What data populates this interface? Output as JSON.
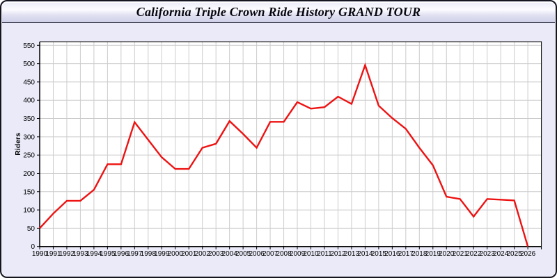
{
  "window": {
    "title": "California Triple Crown Ride History GRAND TOUR"
  },
  "colors": {
    "line": "#ed1212",
    "plot_bg": "#ffffff",
    "grid": "#cccccc",
    "axis": "#000000",
    "panel_bg": "#eaeaf8",
    "title_text": "#06060f"
  },
  "chart_data": {
    "type": "line",
    "title": "California Triple Crown Ride History GRAND TOUR",
    "xlabel": "",
    "ylabel": "Riders",
    "ylim": [
      0,
      550
    ],
    "ytick_step": 50,
    "xlim": [
      1990,
      2027
    ],
    "grid": true,
    "legend": "none",
    "x": [
      1990,
      1991,
      1992,
      1993,
      1994,
      1995,
      1996,
      1997,
      1998,
      1999,
      2000,
      2001,
      2002,
      2003,
      2004,
      2005,
      2006,
      2007,
      2008,
      2009,
      2010,
      2011,
      2012,
      2013,
      2014,
      2015,
      2016,
      2017,
      2018,
      2019,
      2020,
      2021,
      2022,
      2023,
      2024,
      2025,
      2026
    ],
    "series": [
      {
        "name": "Riders",
        "values": [
          50,
          90,
          125,
          125,
          155,
          225,
          225,
          340,
          292,
          244,
          212,
          212,
          270,
          281,
          343,
          308,
          270,
          341,
          341,
          395,
          377,
          381,
          410,
          390,
          496,
          385,
          351,
          322,
          270,
          222,
          136,
          130,
          82,
          130,
          128,
          126,
          0
        ]
      }
    ]
  }
}
